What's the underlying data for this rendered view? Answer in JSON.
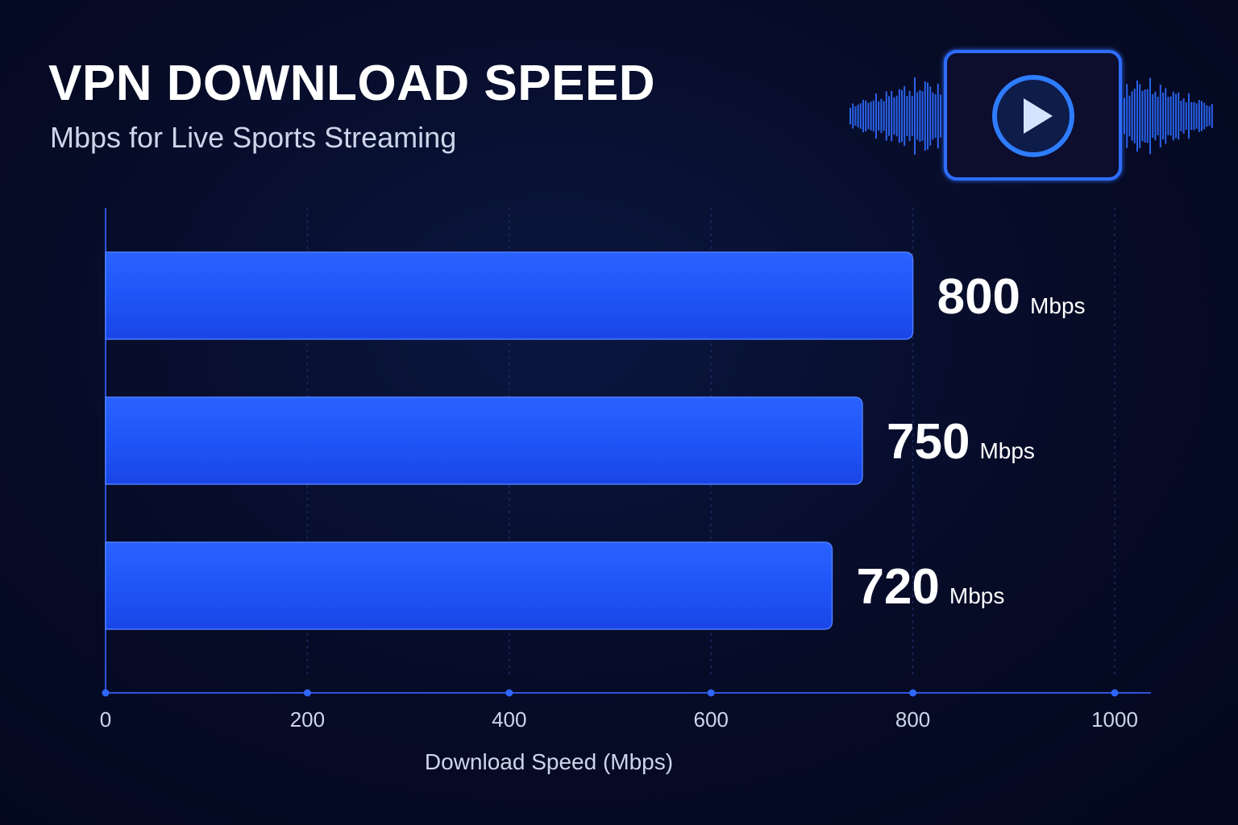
{
  "header": {
    "title": "VPN DOWNLOAD SPEED",
    "subtitle": "Mbps for Live Sports Streaming"
  },
  "icons": {
    "media": "play-button-icon",
    "waves": "sound-wave-icon"
  },
  "colors": {
    "background": "#060b24",
    "bar": "#1f54ff",
    "accent": "#2a6bff",
    "text": "#ffffff",
    "muted_text": "#cdd5ea"
  },
  "chart_data": {
    "type": "bar",
    "orientation": "horizontal",
    "categories": [
      "",
      "",
      ""
    ],
    "values": [
      800,
      750,
      720
    ],
    "value_unit": "Mbps",
    "xlabel": "Download Speed (Mbps)",
    "ylabel": "",
    "xlim": [
      0,
      1000
    ],
    "xticks": [
      0,
      200,
      400,
      600,
      800,
      1000
    ],
    "grid": "vertical dashed",
    "legend": "none"
  }
}
